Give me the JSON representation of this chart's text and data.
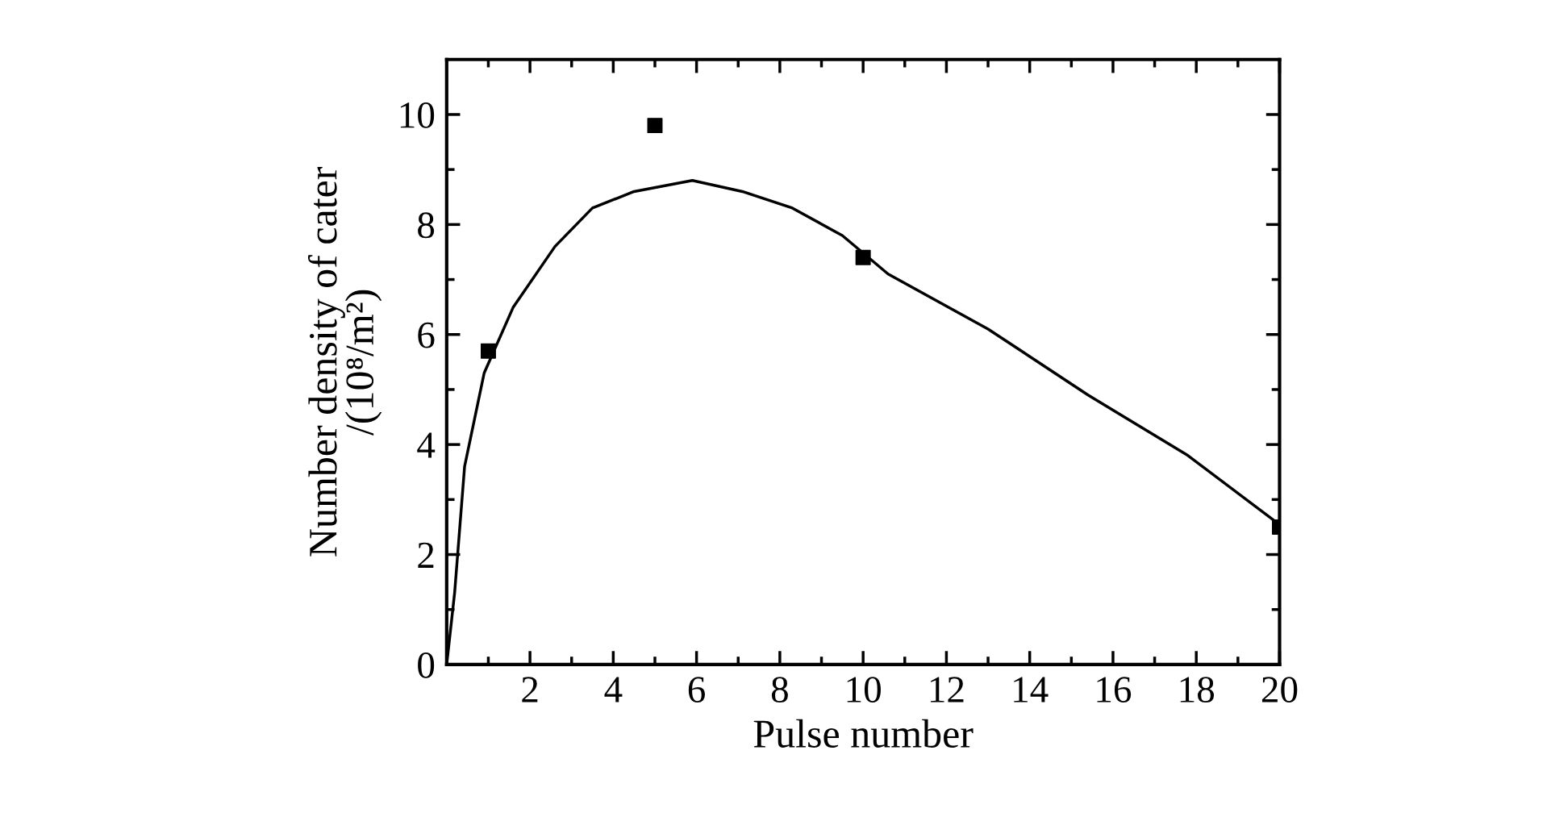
{
  "chart_data": {
    "type": "scatter",
    "xlabel": "Pulse number",
    "ylabel": "Number density of cater\n/(10⁸/m²)",
    "xlim": [
      0,
      20
    ],
    "ylim": [
      0,
      11
    ],
    "xticks": [
      {
        "value": 1,
        "label": null
      },
      2,
      {
        "value": 3,
        "label": null
      },
      4,
      {
        "value": 5,
        "label": null
      },
      6,
      {
        "value": 7,
        "label": null
      },
      8,
      {
        "value": 9,
        "label": null
      },
      10,
      {
        "value": 11,
        "label": null
      },
      12,
      {
        "value": 13,
        "label": null
      },
      14,
      {
        "value": 15,
        "label": null
      },
      16,
      {
        "value": 17,
        "label": null
      },
      18,
      {
        "value": 19,
        "label": null
      },
      20
    ],
    "yticks": [
      0,
      {
        "value": 1,
        "label": null
      },
      2,
      {
        "value": 3,
        "label": null
      },
      4,
      {
        "value": 5,
        "label": null
      },
      6,
      {
        "value": 7,
        "label": null
      },
      8,
      {
        "value": 9,
        "label": null
      },
      10
    ],
    "grid": false,
    "legend": false,
    "series": [
      {
        "marker": "square",
        "color": "#000000",
        "x": [
          1,
          5,
          10,
          20
        ],
        "values": [
          5.7,
          9.8,
          7.4,
          2.5
        ]
      },
      {
        "type": "line",
        "marker": "none",
        "line_style": "solid",
        "color": "#000000",
        "x": [
          0,
          0.19,
          0.43,
          0.9,
          1.6,
          2.6,
          3.5,
          4.5,
          5.9,
          7.1,
          8.3,
          9.5,
          10.6,
          13.0,
          15.4,
          17.8,
          19.9
        ],
        "values": [
          0,
          1.3,
          3.6,
          5.3,
          6.5,
          7.6,
          8.3,
          8.6,
          8.8,
          8.6,
          8.3,
          7.8,
          7.1,
          6.1,
          4.9,
          3.8,
          2.6
        ]
      }
    ]
  }
}
